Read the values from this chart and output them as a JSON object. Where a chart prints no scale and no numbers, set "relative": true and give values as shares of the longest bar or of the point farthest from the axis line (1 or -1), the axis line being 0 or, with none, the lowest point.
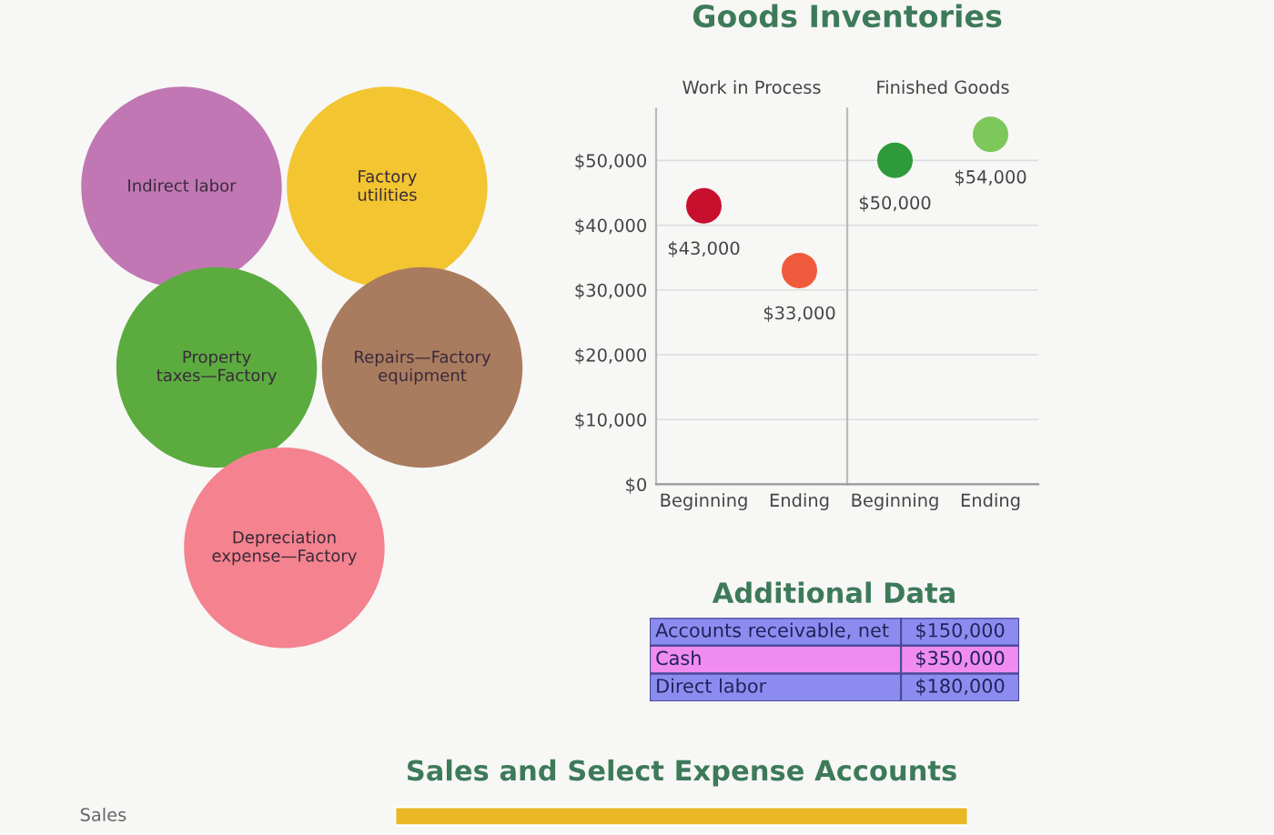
{
  "chart_data": [
    {
      "type": "other",
      "categories": [
        "Indirect labor",
        "Factory utilities",
        "Property taxes—Factory",
        "Repairs—Factory equipment",
        "Depreciation expense—Factory"
      ],
      "colors": [
        "#c077b4",
        "#f2c531",
        "#5bab3f",
        "#a97b5f",
        "#f4838f"
      ]
    },
    {
      "type": "scatter",
      "title": "Goods Inventories",
      "subtitle": "Work in Process",
      "categories": [
        "Beginning",
        "Ending"
      ],
      "values": [
        43000,
        33000
      ],
      "colors": [
        "#c8102e",
        "#f05a3c"
      ],
      "value_labels": [
        "$43,000",
        "$33,000"
      ],
      "marker": "circle",
      "grid": "y",
      "ylim": [
        0,
        58000
      ],
      "yticks": [
        {
          "value": 0,
          "label": "$0"
        },
        {
          "value": 10000,
          "label": "$10,000"
        },
        {
          "value": 20000,
          "label": "$20,000"
        },
        {
          "value": 30000,
          "label": "$30,000"
        },
        {
          "value": 40000,
          "label": "$40,000"
        },
        {
          "value": 50000,
          "label": "$50,000"
        }
      ]
    },
    {
      "type": "scatter",
      "subtitle": "Finished Goods",
      "categories": [
        "Beginning",
        "Ending"
      ],
      "values": [
        50000,
        54000
      ],
      "colors": [
        "#2e9a3a",
        "#7cc85a"
      ],
      "value_labels": [
        "$50,000",
        "$54,000"
      ],
      "marker": "circle",
      "grid": "y",
      "tick_labels": "x",
      "ylim": [
        0,
        58000
      ],
      "yticks": [
        0,
        10000,
        20000,
        30000,
        40000,
        50000
      ]
    },
    {
      "type": "other",
      "title": "Additional Data",
      "categories": [
        "Accounts receivable, net",
        "Cash",
        "Direct labor"
      ],
      "value_labels": [
        "$150,000",
        "$350,000",
        "$180,000"
      ],
      "colors": [
        "#8c8cf0",
        "#f08cf0",
        "#8c8cf0"
      ]
    },
    {
      "type": "bar",
      "orientation": "horizontal",
      "relative": true,
      "title": "Sales and Select Expense Accounts",
      "categories": [
        "Sales"
      ],
      "values": [
        1
      ],
      "color": "#e9b824"
    }
  ]
}
